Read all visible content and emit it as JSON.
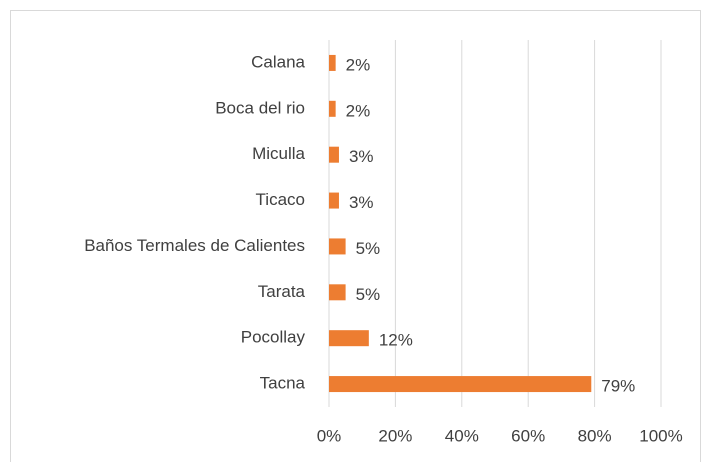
{
  "chart_data": {
    "type": "bar",
    "orientation": "horizontal",
    "categories": [
      "Calana",
      "Boca del rio",
      "Miculla",
      "Ticaco",
      "Baños Termales de Calientes",
      "Tarata",
      "Pocollay",
      "Tacna"
    ],
    "values": [
      2,
      2,
      3,
      3,
      5,
      5,
      12,
      79
    ],
    "value_labels": [
      "2%",
      "2%",
      "3%",
      "3%",
      "5%",
      "5%",
      "12%",
      "79%"
    ],
    "color": "#ed7d31",
    "xlim": [
      0,
      100
    ],
    "xticks": [
      {
        "value": 0,
        "label": "0%"
      },
      {
        "value": 20,
        "label": "20%"
      },
      {
        "value": 40,
        "label": "40%"
      },
      {
        "value": 60,
        "label": "60%"
      },
      {
        "value": 80,
        "label": "80%"
      },
      {
        "value": 100,
        "label": "100%"
      }
    ],
    "grid": true
  }
}
